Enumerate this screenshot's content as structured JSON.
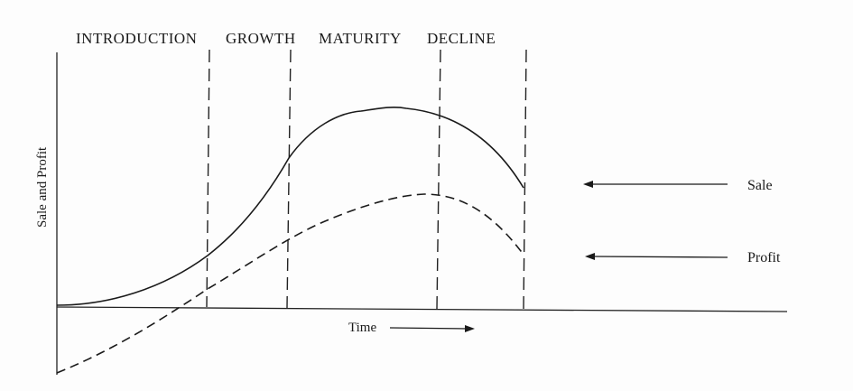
{
  "stages": [
    {
      "label": "INTRODUCTION"
    },
    {
      "label": "GROWTH"
    },
    {
      "label": "MATURITY"
    },
    {
      "label": "DECLINE"
    }
  ],
  "axes": {
    "ylabel": "Sale and Profit",
    "xlabel": "Time"
  },
  "legend": {
    "sale": "Sale",
    "profit": "Profit"
  }
}
